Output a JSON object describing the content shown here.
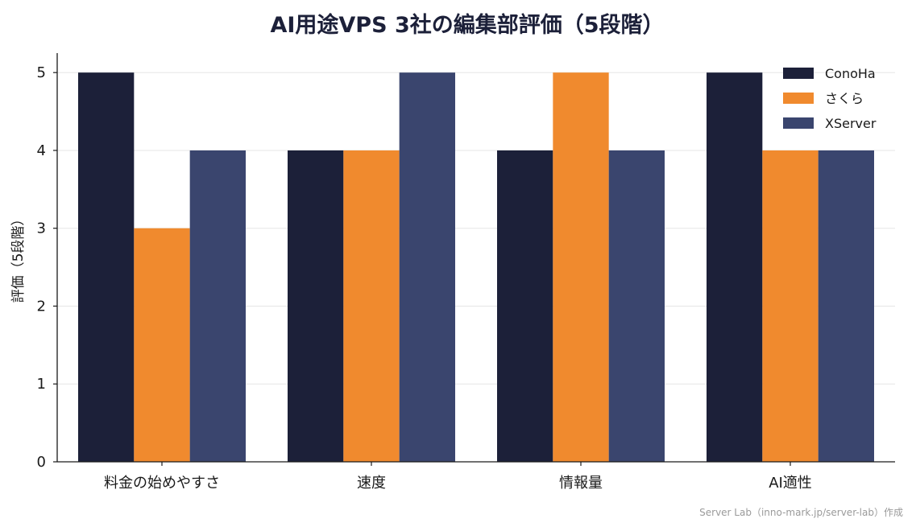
{
  "chart_data": {
    "type": "bar",
    "title": "AI用途VPS 3社の編集部評価（5段階）",
    "xlabel": "",
    "ylabel": "評価（5段階）",
    "categories": [
      "料金の始めやすさ",
      "速度",
      "情報量",
      "AI適性"
    ],
    "series": [
      {
        "name": "ConoHa",
        "color": "#1c2039",
        "values": [
          5,
          4,
          4,
          5
        ]
      },
      {
        "name": "さくら",
        "color": "#f08a2e",
        "values": [
          3,
          4,
          5,
          4
        ]
      },
      {
        "name": "XServer",
        "color": "#3a456e",
        "values": [
          4,
          5,
          4,
          4
        ]
      }
    ],
    "ylim": [
      0,
      5.25
    ],
    "yticks": [
      "0",
      "1",
      "2",
      "3",
      "4",
      "5"
    ],
    "grid": true,
    "grid_axis": "y",
    "legend_position": "top-right"
  },
  "credit": "Server Lab（inno-mark.jp/server-lab）作成"
}
